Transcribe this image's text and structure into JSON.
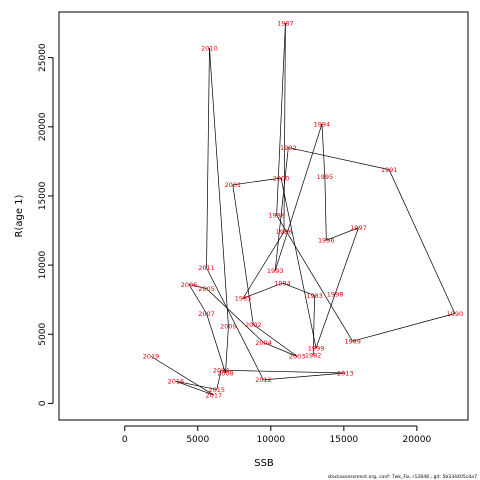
{
  "chart_data": {
    "type": "line",
    "title": "",
    "xlabel": "SSB",
    "ylabel": "R(age 1)",
    "xlim": [
      -4500,
      23500
    ],
    "ylim": [
      -1200,
      28300
    ],
    "xticks": [
      0,
      5000,
      10000,
      15000,
      20000
    ],
    "yticks": [
      0,
      5000,
      10000,
      15000,
      20000,
      25000
    ],
    "line_color": "#000000",
    "label_color": "#e8000b",
    "series": [
      {
        "points": [
          {
            "label": "1982",
            "x": 12900,
            "y": 3500
          },
          {
            "label": "1983",
            "x": 13000,
            "y": 7800
          },
          {
            "label": "1984",
            "x": 10800,
            "y": 8700
          },
          {
            "label": "1985",
            "x": 8100,
            "y": 7600
          },
          {
            "label": "1986",
            "x": 10900,
            "y": 12400
          },
          {
            "label": "1987",
            "x": 11000,
            "y": 27500
          },
          {
            "label": "1988",
            "x": 10400,
            "y": 13600
          },
          {
            "label": "1989",
            "x": 15600,
            "y": 4500
          },
          {
            "label": "1990",
            "x": 22600,
            "y": 6500
          },
          {
            "label": "1991",
            "x": 18100,
            "y": 16900
          },
          {
            "label": "1992",
            "x": 11200,
            "y": 18500
          },
          {
            "label": "1993",
            "x": 10300,
            "y": 9600
          },
          {
            "label": "1994",
            "x": 13500,
            "y": 20200
          },
          {
            "label": "1995",
            "x": 13700,
            "y": 16400
          },
          {
            "label": "1996",
            "x": 13800,
            "y": 11800
          },
          {
            "label": "1997",
            "x": 16000,
            "y": 12700
          },
          {
            "label": "1998",
            "x": 14400,
            "y": 7900
          },
          {
            "label": "1999",
            "x": 13100,
            "y": 4000
          },
          {
            "label": "2000",
            "x": 10700,
            "y": 16300
          },
          {
            "label": "2001",
            "x": 7400,
            "y": 15800
          },
          {
            "label": "2002",
            "x": 8800,
            "y": 5700
          },
          {
            "label": "2003",
            "x": 11800,
            "y": 3400
          },
          {
            "label": "2004",
            "x": 9500,
            "y": 4400
          },
          {
            "label": "2005",
            "x": 5600,
            "y": 8300
          },
          {
            "label": "2006",
            "x": 4400,
            "y": 8600
          },
          {
            "label": "2007",
            "x": 5600,
            "y": 6500
          },
          {
            "label": "2008",
            "x": 6900,
            "y": 2200
          },
          {
            "label": "2009",
            "x": 7100,
            "y": 5600
          },
          {
            "label": "2010",
            "x": 5800,
            "y": 25700
          },
          {
            "label": "2011",
            "x": 5600,
            "y": 9800
          },
          {
            "label": "2012",
            "x": 9500,
            "y": 1700
          },
          {
            "label": "2013",
            "x": 15100,
            "y": 2200
          },
          {
            "label": "2014",
            "x": 6600,
            "y": 2400
          },
          {
            "label": "2015",
            "x": 6300,
            "y": 1000
          },
          {
            "label": "2016",
            "x": 3500,
            "y": 1600
          },
          {
            "label": "2017",
            "x": 6100,
            "y": 600
          },
          {
            "label": "2019",
            "x": 1800,
            "y": 3400
          }
        ]
      }
    ]
  },
  "footer": "stockassessment.org, conf: 7wk_Fix, r12848 , git: 5b334405cda7"
}
